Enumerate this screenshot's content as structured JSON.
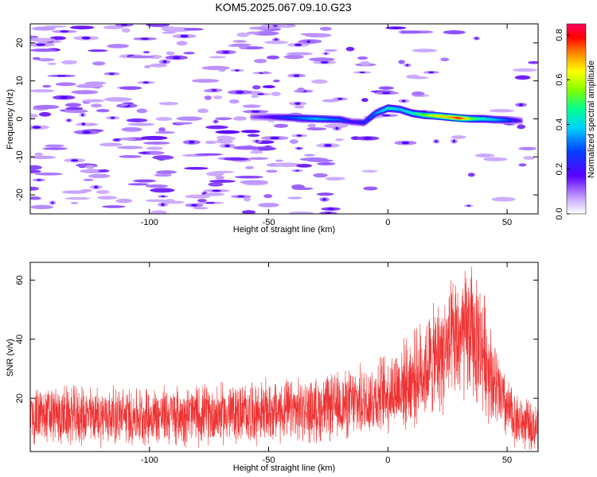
{
  "title": "KOM5.2025.067.09.10.G23",
  "chart_data": [
    {
      "type": "heatmap",
      "xlabel": "Height of straight line (km)",
      "ylabel": "Frequency (Hz)",
      "xlim": [
        -150,
        63
      ],
      "ylim": [
        -25,
        25
      ],
      "xticks": [
        -100,
        -50,
        0,
        50
      ],
      "yticks": [
        -20,
        -10,
        0,
        10,
        20
      ],
      "ridge": {
        "x": [
          -57,
          -50,
          -40,
          -30,
          -20,
          -15,
          -10,
          -5,
          0,
          5,
          10,
          15,
          20,
          25,
          30,
          35,
          40,
          45,
          50,
          56
        ],
        "frequency_hz": [
          0.5,
          0.5,
          0.3,
          0.0,
          -0.2,
          -0.8,
          -1.0,
          1.5,
          2.8,
          2.5,
          1.5,
          1.0,
          0.8,
          0.5,
          0.2,
          0.0,
          0.0,
          -0.2,
          -0.3,
          -0.5
        ],
        "amplitude": [
          0.12,
          0.18,
          0.3,
          0.38,
          0.3,
          0.2,
          0.25,
          0.35,
          0.45,
          0.4,
          0.45,
          0.55,
          0.65,
          0.7,
          0.82,
          0.55,
          0.45,
          0.38,
          0.3,
          0.15
        ]
      },
      "colorbar": {
        "label": "Normalized spectral amplitude",
        "range": [
          0.0,
          0.85
        ],
        "ticks": [
          0.0,
          0.2,
          0.4,
          0.6,
          0.8
        ]
      },
      "grid": false
    },
    {
      "type": "line",
      "xlabel": "Height of straight line (km)",
      "ylabel": "SNR (v/v)",
      "xlim": [
        -150,
        63
      ],
      "ylim": [
        2,
        66
      ],
      "xticks": [
        -100,
        -50,
        0,
        50
      ],
      "yticks": [
        20,
        40,
        60
      ],
      "line_color": "#ee3333",
      "trend": {
        "x": [
          -150,
          -100,
          -60,
          -30,
          -10,
          0,
          10,
          20,
          30,
          35,
          40,
          45,
          50,
          55,
          63
        ],
        "snr_mean": [
          14,
          14,
          15,
          16,
          19,
          22,
          26,
          33,
          40,
          42,
          37,
          24,
          16,
          12,
          10
        ]
      },
      "grid": false
    }
  ]
}
